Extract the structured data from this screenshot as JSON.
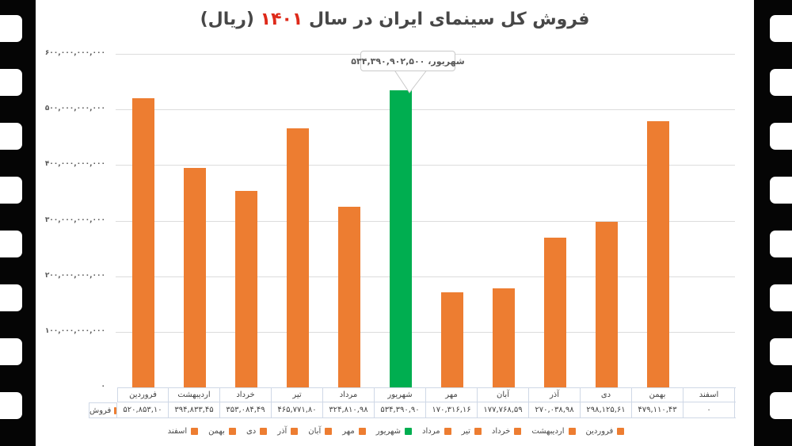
{
  "title": {
    "text_before_year": "فروش کل سینمای ایران در سال",
    "year": "۱۴۰۱",
    "text_after_year": "(ریال)"
  },
  "callout": {
    "text": "شهریور، ۵۳۴,۳۹۰,۹۰۲,۵۰۰"
  },
  "y_axis": {
    "tick_labels": [
      "۶۰۰,۰۰۰,۰۰۰,۰۰۰",
      "۵۰۰,۰۰۰,۰۰۰,۰۰۰",
      "۴۰۰,۰۰۰,۰۰۰,۰۰۰",
      "۳۰۰,۰۰۰,۰۰۰,۰۰۰",
      "۲۰۰,۰۰۰,۰۰۰,۰۰۰",
      "۱۰۰,۰۰۰,۰۰۰,۰۰۰",
      "۰"
    ]
  },
  "x_axis": {
    "months": [
      "فروردین",
      "اردیبهشت",
      "خرداد",
      "تیر",
      "مرداد",
      "شهریور",
      "مهر",
      "آبان",
      "آذر",
      "دی",
      "بهمن",
      "اسفند"
    ]
  },
  "data_table": {
    "row_label": "فروش",
    "display_values": [
      "۵۲۰,۸۵۳,۱۰",
      "۳۹۴,۸۳۳,۴۵",
      "۳۵۳,۰۸۴,۴۹",
      "۴۶۵,۷۷۱,۸۰",
      "۳۲۴,۸۱۰,۹۸",
      "۵۳۴,۳۹۰,۹۰",
      "۱۷۰,۳۱۶,۱۶",
      "۱۷۷,۷۶۸,۵۹",
      "۲۷۰,۰۳۸,۹۸",
      "۲۹۸,۱۲۵,۶۱",
      "۴۷۹,۱۱۰,۴۳",
      "۰"
    ]
  },
  "colors": {
    "bar_orange": "#ED7D31",
    "bar_green": "#00AE50",
    "year_red": "#DE2A1A",
    "gridline": "#DCDCDC",
    "table_border": "#CFD8E6"
  },
  "chart_data": {
    "type": "bar",
    "title": "فروش کل سینمای ایران در سال ۱۴۰۱ (ریال)",
    "categories": [
      "فروردین",
      "اردیبهشت",
      "خرداد",
      "تیر",
      "مرداد",
      "شهریور",
      "مهر",
      "آبان",
      "آذر",
      "دی",
      "بهمن",
      "اسفند"
    ],
    "series": [
      {
        "name": "فروش",
        "values": [
          520853100000,
          394833450000,
          353084490000,
          465771800000,
          324810980000,
          534390902500,
          170316160000,
          177768590000,
          270038980000,
          298125610000,
          479110430000,
          0
        ]
      }
    ],
    "xlabel": "",
    "ylabel": "",
    "ylim": [
      0,
      600000000000
    ],
    "y_tick_step": 100000000000,
    "grid": true,
    "legend_position": "bottom",
    "highlight": {
      "index": 5,
      "color": "#00AE50",
      "annotation": "شهریور، ۵۳۴,۳۹۰,۹۰۲,۵۰۰"
    }
  }
}
